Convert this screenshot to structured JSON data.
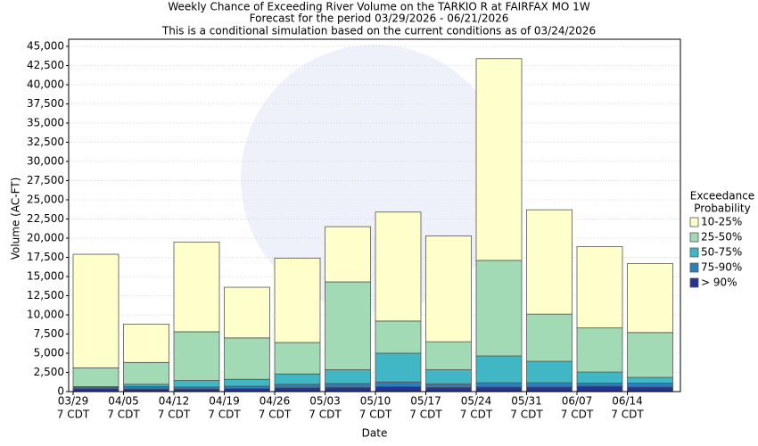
{
  "chart_data": {
    "type": "stacked_bar",
    "title": "Weekly Chance of Exceeding River Volume on the TARKIO R at FAIRFAX MO 1W",
    "subtitle": [
      "Forecast for the period 03/29/2026 - 06/21/2026",
      "This is a conditional simulation based on the current conditions as of 03/24/2026"
    ],
    "x_label": "Date",
    "y_label": "Volume (AC-FT)",
    "legend_title": [
      "Exceedance",
      "Probability"
    ],
    "legend_position": "right",
    "grid": true,
    "categories": [
      [
        "03/29",
        "7 CDT"
      ],
      [
        "04/05",
        "7 CDT"
      ],
      [
        "04/12",
        "7 CDT"
      ],
      [
        "04/19",
        "7 CDT"
      ],
      [
        "04/26",
        "7 CDT"
      ],
      [
        "05/03",
        "7 CDT"
      ],
      [
        "05/10",
        "7 CDT"
      ],
      [
        "05/17",
        "7 CDT"
      ],
      [
        "05/24",
        "7 CDT"
      ],
      [
        "05/31",
        "7 CDT"
      ],
      [
        "06/07",
        "7 CDT"
      ],
      [
        "06/14",
        "7 CDT"
      ]
    ],
    "series": [
      {
        "name": "10-25%",
        "color": "#ffffcc",
        "values": [
          14800,
          5000,
          11700,
          6600,
          11000,
          7200,
          14200,
          13800,
          26300,
          13600,
          10600,
          9000
        ]
      },
      {
        "name": "25-50%",
        "color": "#a1dab4",
        "values": [
          2450,
          2850,
          6350,
          5400,
          4100,
          11450,
          4200,
          3650,
          12450,
          6150,
          5750,
          5850
        ]
      },
      {
        "name": "50-75%",
        "color": "#41b6c4",
        "values": [
          100,
          300,
          850,
          900,
          1350,
          1800,
          3750,
          1850,
          3500,
          2800,
          1450,
          750
        ]
      },
      {
        "name": "75-90%",
        "color": "#2c7fb8",
        "values": [
          150,
          300,
          250,
          300,
          450,
          500,
          600,
          450,
          550,
          550,
          400,
          500
        ]
      },
      {
        "name": "> 90%",
        "color": "#253494",
        "values": [
          400,
          350,
          350,
          400,
          500,
          550,
          650,
          550,
          600,
          600,
          700,
          600
        ]
      }
    ],
    "ylim": [
      0,
      45000
    ],
    "yticks": [
      0,
      {
        "value": 2500,
        "label": "2,500"
      },
      {
        "value": 5000,
        "label": "5,000"
      },
      {
        "value": 7500,
        "label": "7,500"
      },
      {
        "value": 10000,
        "label": "10,000"
      },
      {
        "value": 12500,
        "label": "12,500"
      },
      {
        "value": 15000,
        "label": "15,000"
      },
      {
        "value": 17500,
        "label": "17,500"
      },
      {
        "value": 20000,
        "label": "20,000"
      },
      {
        "value": 22500,
        "label": "22,500"
      },
      {
        "value": 25000,
        "label": "25,000"
      },
      {
        "value": 27500,
        "label": "27,500"
      },
      {
        "value": 30000,
        "label": "30,000"
      },
      {
        "value": 32500,
        "label": "32,500"
      },
      {
        "value": 35000,
        "label": "35,000"
      },
      {
        "value": 37500,
        "label": "37,500"
      },
      {
        "value": 40000,
        "label": "40,000"
      },
      {
        "value": 42500,
        "label": "42,500"
      },
      {
        "value": 45000,
        "label": "45,000"
      }
    ]
  }
}
